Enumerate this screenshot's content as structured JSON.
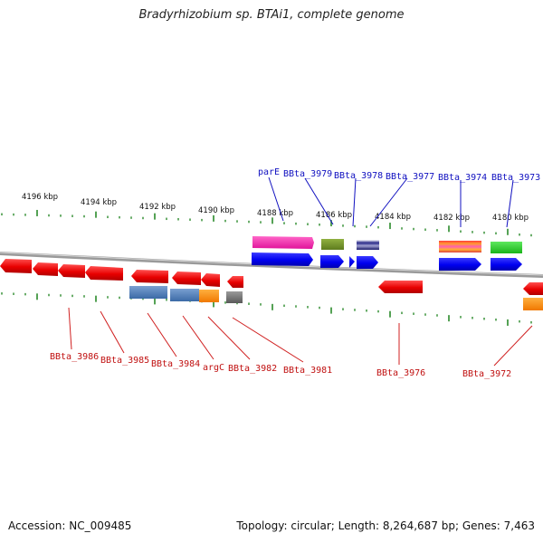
{
  "title": "Bradyrhizobium sp. BTAi1, complete genome",
  "accession_label": "Accession: NC_009485",
  "topology_label": "Topology: circular; Length: 8,264,687 bp; Genes: 7,463",
  "colors": {
    "forward_strand_label": "#1010c0",
    "reverse_strand_label": "#c01010",
    "backbone": "#888888",
    "tick": "#2a8a2a"
  },
  "scale_labels": [
    "4196 kbp",
    "4194 kbp",
    "4192 kbp",
    "4190 kbp",
    "4188 kbp",
    "4186 kbp",
    "4184 kbp",
    "4182 kbp",
    "4180 kbp"
  ],
  "forward_gene_labels": [
    "parE",
    "BBta_3979",
    "BBta_3978",
    "BBta_3977",
    "BBta_3974",
    "BBta_3973"
  ],
  "reverse_gene_labels": [
    "BBta_3986",
    "BBta_3985",
    "BBta_3984",
    "argC",
    "BBta_3982",
    "BBta_3981",
    "BBta_3976",
    "BBta_3972"
  ]
}
